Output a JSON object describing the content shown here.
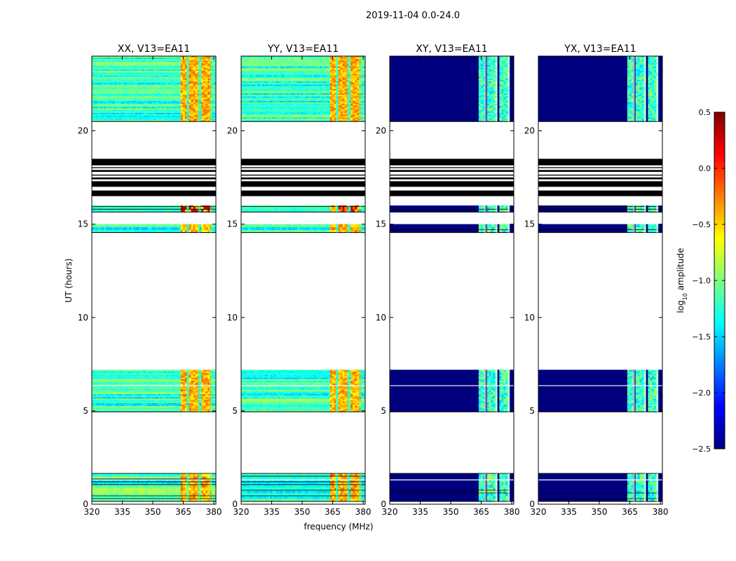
{
  "figure": {
    "suptitle": "2019-11-04 0.0-24.0",
    "ylabel": "UT (hours)",
    "xlabel": "frequency (MHz)"
  },
  "colorbar": {
    "label_main": "log",
    "label_sub": "10",
    "label_tail": " amplitude",
    "range": [
      -2.5,
      0.5
    ],
    "ticks": [
      "0.5",
      "0.0",
      "−0.5",
      "−1.0",
      "−1.5",
      "−2.0",
      "−2.5"
    ],
    "tick_values": [
      0.5,
      0.0,
      -0.5,
      -1.0,
      -1.5,
      -2.0,
      -2.5
    ],
    "colormap": "jet",
    "colormap_stops": [
      "#00007f",
      "#0000ff",
      "#007fff",
      "#00ffff",
      "#7fff7f",
      "#ffff00",
      "#ff7f00",
      "#ff0000",
      "#7f0000"
    ]
  },
  "chart_data": {
    "type": "heatmap",
    "panels": [
      {
        "title": "XX, V13=EA11",
        "mode": "parallel"
      },
      {
        "title": "YY, V13=EA11",
        "mode": "parallel"
      },
      {
        "title": "XY, V13=EA11",
        "mode": "cross"
      },
      {
        "title": "YX, V13=EA11",
        "mode": "cross"
      }
    ],
    "x": {
      "range": [
        320,
        381
      ],
      "ticks": [
        320,
        335,
        350,
        365,
        380
      ],
      "tick_labels": [
        "320",
        "335",
        "350",
        "365",
        "380"
      ]
    },
    "y": {
      "range": [
        0,
        24
      ],
      "ticks": [
        0,
        5,
        10,
        15,
        20
      ],
      "tick_labels": [
        "0",
        "5",
        "10",
        "15",
        "20"
      ]
    },
    "observed_blocks_ut": [
      [
        0.15,
        1.65
      ],
      [
        4.95,
        7.2
      ],
      [
        14.55,
        15.0
      ],
      [
        15.65,
        16.0
      ],
      [
        20.5,
        24.0
      ]
    ],
    "black_flag_bands_ut": [
      [
        16.5,
        16.8
      ],
      [
        17.0,
        17.3
      ],
      [
        17.4,
        17.5
      ],
      [
        17.6,
        17.65
      ],
      [
        17.8,
        17.9
      ],
      [
        18.0,
        18.05
      ],
      [
        18.15,
        18.5
      ]
    ],
    "white_gap_lines_ut": [
      6.35,
      1.3
    ],
    "bright_channels_mhz": [
      [
        363,
        366.5
      ],
      [
        367.5,
        372
      ],
      [
        373,
        378
      ]
    ],
    "typical_log_amplitude": {
      "parallel_background": -1.2,
      "parallel_bright": -0.5,
      "parallel_peak": 0.3,
      "cross_background": -2.5,
      "cross_bright": -1.2
    }
  }
}
